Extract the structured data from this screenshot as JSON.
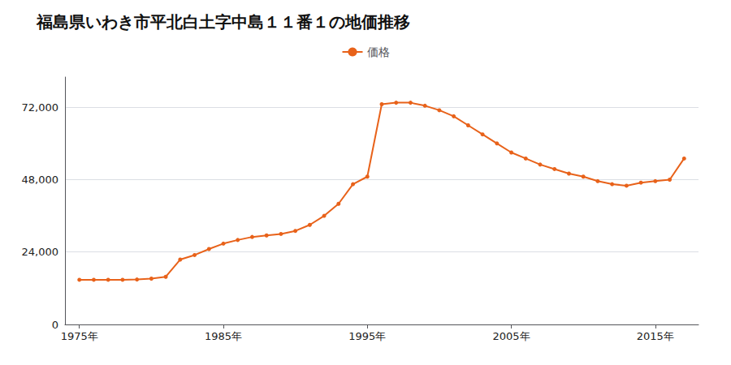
{
  "chart_data": {
    "type": "line",
    "title": "福島県いわき市平北白土字中島１１番１の地価推移",
    "x": [
      1975,
      1976,
      1977,
      1978,
      1979,
      1980,
      1981,
      1982,
      1983,
      1984,
      1985,
      1986,
      1987,
      1988,
      1989,
      1990,
      1991,
      1992,
      1993,
      1994,
      1995,
      1996,
      1997,
      1998,
      1999,
      2000,
      2001,
      2002,
      2003,
      2004,
      2005,
      2006,
      2007,
      2008,
      2009,
      2010,
      2011,
      2012,
      2013,
      2014,
      2015,
      2016,
      2017
    ],
    "series": [
      {
        "name": "価格",
        "color": "#E8621A",
        "marker": "circle",
        "values": [
          14800,
          14800,
          14800,
          14800,
          14900,
          15200,
          15800,
          21500,
          23000,
          25000,
          26800,
          28000,
          29000,
          29500,
          30000,
          31000,
          33000,
          36000,
          40000,
          46500,
          49000,
          73000,
          73500,
          73500,
          72500,
          71000,
          69000,
          66000,
          63000,
          60000,
          57000,
          55000,
          53000,
          51500,
          50000,
          49000,
          47500,
          46500,
          46000,
          47000,
          47500,
          48000,
          55000
        ]
      }
    ],
    "xlim": [
      1974,
      2018
    ],
    "xticks": [
      {
        "value": 1975,
        "label": "1975年"
      },
      {
        "value": 1985,
        "label": "1985年"
      },
      {
        "value": 1995,
        "label": "1995年"
      },
      {
        "value": 2005,
        "label": "2005年"
      },
      {
        "value": 2015,
        "label": "2015年"
      }
    ],
    "ylim": [
      0,
      82000
    ],
    "yticks": [
      0,
      {
        "value": 24000,
        "label": "24,000"
      },
      {
        "value": 48000,
        "label": "48,000"
      },
      {
        "value": 72000,
        "label": "72,000"
      }
    ],
    "grid": true,
    "legend": "top"
  }
}
